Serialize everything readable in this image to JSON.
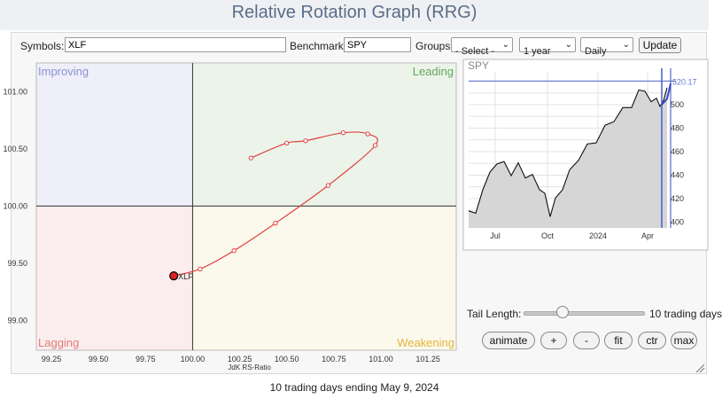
{
  "window_title": "Relative Rotation Graph (RRG)",
  "toolbar": {
    "symbols_label": "Symbols:",
    "symbols_value": "XLF",
    "benchmark_label": "Benchmark:",
    "benchmark_value": "SPY",
    "groups_label": "Groups:",
    "groups_selected": "- Select -",
    "period_selected": "1 year",
    "interval_selected": "Daily",
    "update_label": "Update"
  },
  "rrg": {
    "quadrants": {
      "improving": "Improving",
      "leading": "Leading",
      "lagging": "Lagging",
      "weakening": "Weakening"
    },
    "colors": {
      "improving": "#8b92d4",
      "leading": "#5fa65a",
      "lagging": "#e07a7a",
      "weakening": "#e7b43a",
      "tail": "#e04040"
    },
    "xlabel": "JdK RS-Ratio",
    "x_ticks": [
      "99.25",
      "99.50",
      "99.75",
      "100.00",
      "100.25",
      "100.50",
      "100.75",
      "101.00",
      "101.25"
    ],
    "y_ticks": [
      "101.00",
      "100.50",
      "100.00",
      "99.50",
      "99.00"
    ],
    "xlim": [
      99.17,
      101.4
    ],
    "ylim": [
      98.74,
      101.25
    ],
    "series": [
      {
        "name": "XLF",
        "points": [
          [
            100.31,
            100.42
          ],
          [
            100.5,
            100.55
          ],
          [
            100.6,
            100.57
          ],
          [
            100.8,
            100.64
          ],
          [
            100.93,
            100.63
          ],
          [
            100.97,
            100.53
          ],
          [
            100.72,
            100.18
          ],
          [
            100.44,
            99.85
          ],
          [
            100.22,
            99.61
          ],
          [
            100.04,
            99.45
          ],
          [
            99.9,
            99.39
          ]
        ]
      }
    ]
  },
  "mini_chart": {
    "symbol": "SPY",
    "last_value": "520.17",
    "y_ticks": [
      "500",
      "480",
      "460",
      "440",
      "420",
      "400"
    ],
    "x_ticks": [
      "Jul",
      "Oct",
      "2024",
      "Apr"
    ]
  },
  "controls": {
    "tail_length_label": "Tail Length:",
    "tail_length_value": "10 trading days",
    "tail_slider_fraction": 0.32,
    "buttons": {
      "animate": "animate",
      "plus": "+",
      "minus": "-",
      "fit": "fit",
      "ctr": "ctr",
      "max": "max"
    }
  },
  "footer": {
    "caption": "10 trading days ending May 9, 2024"
  }
}
